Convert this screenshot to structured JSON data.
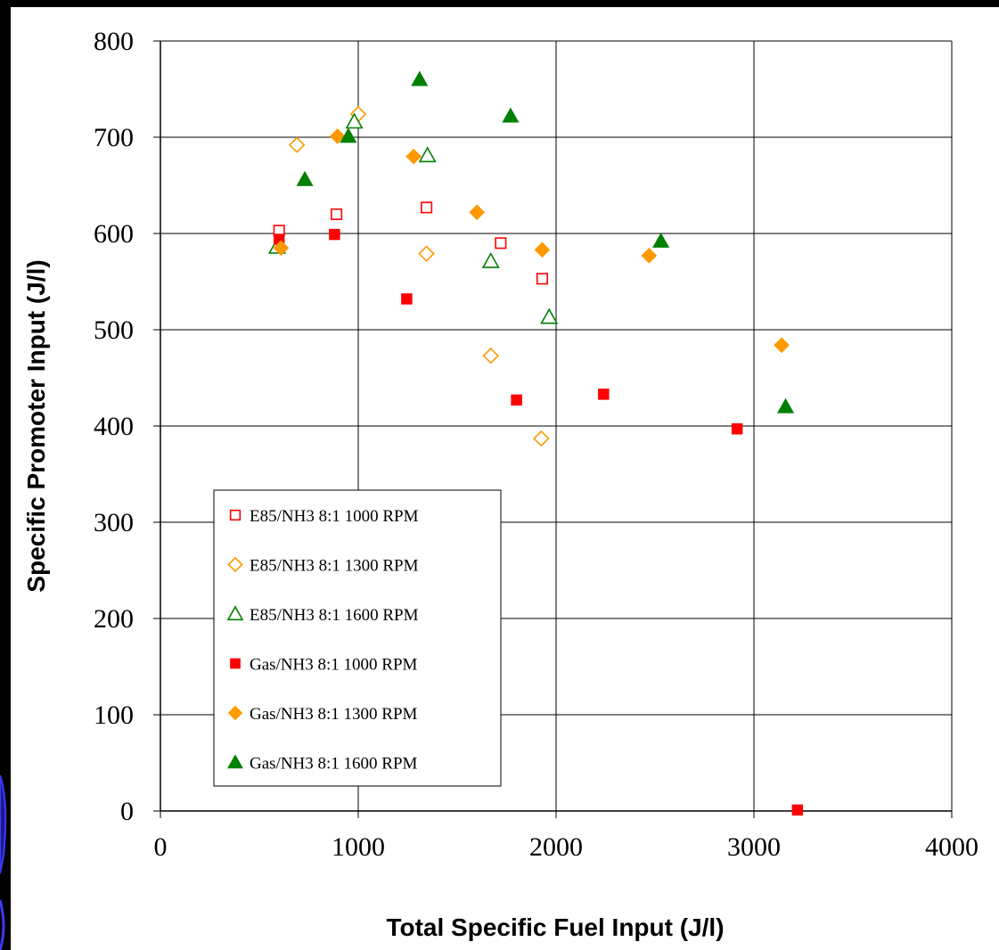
{
  "chart_data": {
    "type": "scatter",
    "title": "",
    "xlabel": "Total Specific Fuel Input (J/l)",
    "ylabel": "Specific Promoter Input (J/l)",
    "xlim": [
      0,
      4000
    ],
    "ylim": [
      0,
      800
    ],
    "x_ticks": [
      "0",
      "1000",
      "2000",
      "3000",
      "4000"
    ],
    "y_ticks": [
      "0",
      "100",
      "200",
      "300",
      "400",
      "500",
      "600",
      "700",
      "800"
    ],
    "grid": "major gridlines on both axes",
    "legend_position": "lower-left inside plot",
    "series": [
      {
        "name": "E85/NH3 8:1 1000 RPM",
        "marker": "square-open",
        "color": "#FF0000",
        "points": [
          [
            600,
            603
          ],
          [
            890,
            620
          ],
          [
            1345,
            627
          ],
          [
            1720,
            590
          ],
          [
            1930,
            553
          ]
        ]
      },
      {
        "name": "E85/NH3 8:1 1300 RPM",
        "marker": "diamond-open",
        "color": "#FF9900",
        "points": [
          [
            690,
            692
          ],
          [
            1000,
            724
          ],
          [
            1345,
            579
          ],
          [
            1670,
            473
          ],
          [
            1925,
            387
          ]
        ]
      },
      {
        "name": "E85/NH3 8:1 1600 RPM",
        "marker": "triangle-open",
        "color": "#008000",
        "points": [
          [
            590,
            586
          ],
          [
            980,
            716
          ],
          [
            1350,
            681
          ],
          [
            1670,
            571
          ],
          [
            1965,
            513
          ]
        ]
      },
      {
        "name": "Gas/NH3 8:1 1000 RPM",
        "marker": "square-filled",
        "color": "#FF0000",
        "points": [
          [
            600,
            594
          ],
          [
            880,
            599
          ],
          [
            1245,
            532
          ],
          [
            1800,
            427
          ],
          [
            2240,
            433
          ],
          [
            2915,
            397
          ],
          [
            3220,
            1
          ]
        ]
      },
      {
        "name": "Gas/NH3 8:1 1300 RPM",
        "marker": "diamond-filled",
        "color": "#FF9900",
        "points": [
          [
            610,
            585
          ],
          [
            895,
            701
          ],
          [
            1280,
            680
          ],
          [
            1600,
            622
          ],
          [
            1930,
            583
          ],
          [
            2470,
            577
          ],
          [
            3140,
            484
          ]
        ]
      },
      {
        "name": "Gas/NH3 8:1 1600 RPM",
        "marker": "triangle-filled",
        "color": "#008000",
        "points": [
          [
            730,
            656
          ],
          [
            950,
            701
          ],
          [
            1310,
            760
          ],
          [
            1770,
            722
          ],
          [
            2530,
            592
          ],
          [
            3160,
            420
          ]
        ]
      }
    ]
  }
}
